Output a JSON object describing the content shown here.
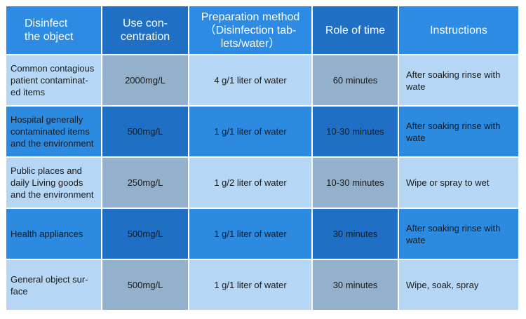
{
  "headers": [
    "Disinfect\nthe object",
    "Use con-\ncentration",
    "Preparation method\n（Disinfection tab-\nlets/water）",
    "Role of time",
    "Instructions"
  ],
  "rows": [
    {
      "object": "Common contagious patient contaminat-ed items",
      "concentration": "2000mg/L",
      "preparation": "4 g/1 liter of water",
      "time": "60 minutes",
      "instructions": "After soaking rinse with wate"
    },
    {
      "object": "Hospital generally contaminated items and the environment",
      "concentration": "500mg/L",
      "preparation": "1 g/1 liter of water",
      "time": "10-30 minutes",
      "instructions": "After soaking rinse with wate"
    },
    {
      "object": "Public places and daily Living goods and the environment",
      "concentration": "250mg/L",
      "preparation": "1 g/2 liter of water",
      "time": "10-30 minutes",
      "instructions": "Wipe or spray to wet"
    },
    {
      "object": "Health appliances",
      "concentration": "500mg/L",
      "preparation": "1 g/1 liter of water",
      "time": "30 minutes",
      "instructions": "After soaking rinse with wate"
    },
    {
      "object": "General object sur-face",
      "concentration": "500mg/L",
      "preparation": "1 g/1 liter of water",
      "time": "30 minutes",
      "instructions": "Wipe, soak, spray"
    }
  ]
}
